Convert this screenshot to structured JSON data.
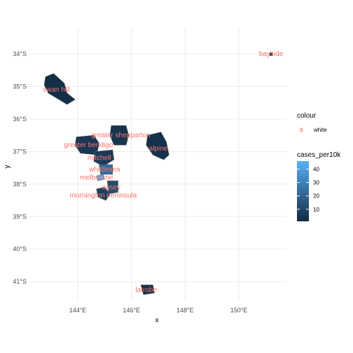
{
  "chart_data": {
    "type": "map",
    "xlabel": "x",
    "ylabel": "y",
    "xlim": [
      142.2,
      151.8
    ],
    "ylim": [
      -41.6,
      -33.2
    ],
    "x_ticks": [
      144,
      146,
      148,
      150
    ],
    "x_tick_labels": [
      "144°E",
      "146°E",
      "148°E",
      "150°E"
    ],
    "y_ticks": [
      -34,
      -35,
      -36,
      -37,
      -38,
      -39,
      -40,
      -41
    ],
    "y_tick_labels": [
      "34°S",
      "35°S",
      "36°S",
      "37°S",
      "38°S",
      "39°S",
      "40°S",
      "41°S"
    ],
    "grid": true,
    "colors": {
      "grid": "#ebebeb",
      "label": "#f8766d",
      "fill_low": "#132b43",
      "fill_high": "#56b1f7",
      "border": "#5a5a5a"
    },
    "regions": [
      {
        "name": "swan hill",
        "cases_per10k": 2,
        "label": [
          143.2,
          -35.1
        ],
        "poly": [
          [
            142.8,
            -34.7
          ],
          [
            143.1,
            -34.6
          ],
          [
            143.5,
            -34.9
          ],
          [
            143.6,
            -35.2
          ],
          [
            143.9,
            -35.4
          ],
          [
            143.6,
            -35.55
          ],
          [
            143.3,
            -35.4
          ],
          [
            142.9,
            -35.2
          ],
          [
            142.75,
            -34.95
          ]
        ]
      },
      {
        "name": "greater shepparton",
        "cases_per10k": 4,
        "label": [
          145.6,
          -36.5
        ],
        "poly": [
          [
            145.25,
            -36.2
          ],
          [
            145.8,
            -36.2
          ],
          [
            145.9,
            -36.5
          ],
          [
            145.8,
            -36.8
          ],
          [
            145.35,
            -36.8
          ],
          [
            145.2,
            -36.5
          ]
        ]
      },
      {
        "name": "greater bendigo",
        "cases_per10k": 5,
        "label": [
          144.4,
          -36.8
        ],
        "poly": [
          [
            143.95,
            -36.55
          ],
          [
            144.6,
            -36.5
          ],
          [
            144.8,
            -36.75
          ],
          [
            144.7,
            -37.1
          ],
          [
            144.1,
            -37.05
          ],
          [
            143.9,
            -36.8
          ]
        ]
      },
      {
        "name": "alpine",
        "cases_per10k": 3,
        "label": [
          147.0,
          -36.9
        ],
        "poly": [
          [
            146.6,
            -36.5
          ],
          [
            147.1,
            -36.4
          ],
          [
            147.3,
            -36.7
          ],
          [
            147.4,
            -37.1
          ],
          [
            147.2,
            -37.25
          ],
          [
            146.8,
            -37.1
          ],
          [
            146.55,
            -36.8
          ]
        ]
      },
      {
        "name": "mitchell",
        "cases_per10k": 6,
        "label": [
          144.8,
          -37.2
        ],
        "poly": [
          [
            144.65,
            -37.0
          ],
          [
            145.3,
            -36.95
          ],
          [
            145.35,
            -37.25
          ],
          [
            144.95,
            -37.45
          ],
          [
            144.6,
            -37.3
          ]
        ]
      },
      {
        "name": "whittlesea",
        "cases_per10k": 22,
        "label": [
          145.0,
          -37.55
        ],
        "poly": [
          [
            144.8,
            -37.4
          ],
          [
            145.3,
            -37.4
          ],
          [
            145.3,
            -37.7
          ],
          [
            144.85,
            -37.7
          ]
        ]
      },
      {
        "name": "melbourne",
        "cases_per10k": 45,
        "label": [
          144.7,
          -37.8
        ],
        "poly": [
          [
            144.7,
            -37.75
          ],
          [
            144.95,
            -37.7
          ],
          [
            145.0,
            -37.85
          ],
          [
            144.75,
            -37.9
          ]
        ]
      },
      {
        "name": "casey",
        "cases_per10k": 12,
        "label": [
          145.25,
          -38.1
        ],
        "poly": [
          [
            145.1,
            -37.9
          ],
          [
            145.5,
            -37.9
          ],
          [
            145.5,
            -38.25
          ],
          [
            145.15,
            -38.3
          ]
        ]
      },
      {
        "name": "mornington peninsula",
        "cases_per10k": 8,
        "label": [
          144.95,
          -38.35
        ],
        "poly": [
          [
            144.7,
            -38.15
          ],
          [
            145.0,
            -38.1
          ],
          [
            145.2,
            -38.3
          ],
          [
            145.05,
            -38.5
          ],
          [
            144.75,
            -38.4
          ]
        ]
      },
      {
        "name": "latrobe",
        "cases_per10k": 3,
        "label": [
          146.55,
          -41.25
        ],
        "poly": [
          [
            146.35,
            -41.1
          ],
          [
            146.8,
            -41.1
          ],
          [
            146.85,
            -41.35
          ],
          [
            146.45,
            -41.4
          ]
        ]
      },
      {
        "name": "bayside",
        "cases_per10k": 2,
        "label": [
          151.2,
          -34.0
        ],
        "poly": [
          [
            151.15,
            -33.95
          ],
          [
            151.25,
            -33.95
          ],
          [
            151.25,
            -34.05
          ],
          [
            151.15,
            -34.05
          ]
        ]
      }
    ]
  },
  "legend_colour": {
    "title": "colour",
    "key": "a",
    "label": "white"
  },
  "legend_fill": {
    "title": "cases_per10k",
    "ticks": [
      10,
      20,
      30,
      40
    ],
    "min": 1,
    "max": 46
  }
}
